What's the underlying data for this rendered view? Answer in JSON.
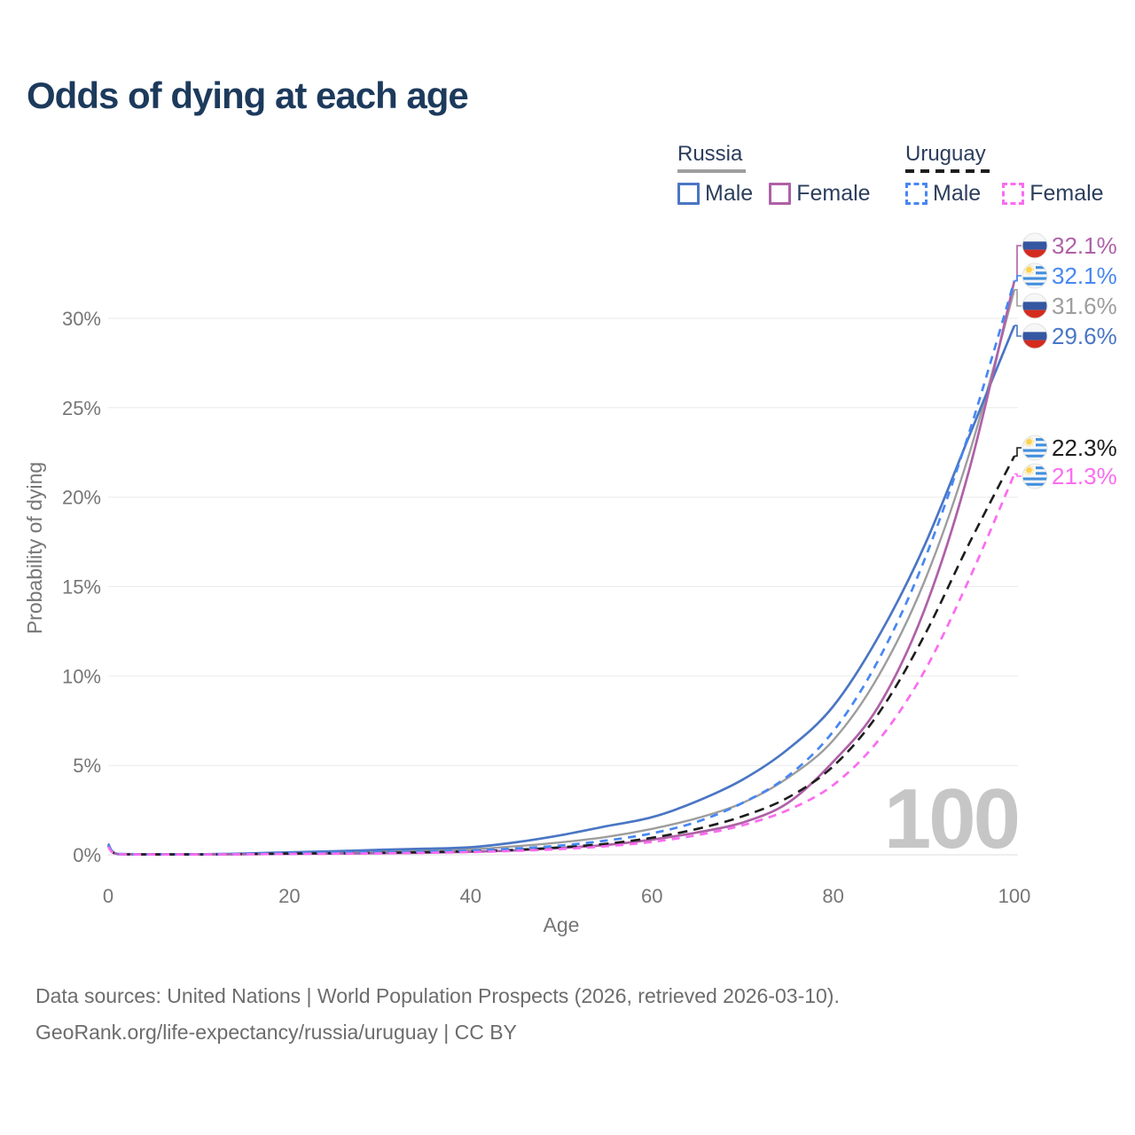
{
  "title": "Odds of dying at each age",
  "watermark": "100",
  "legend": {
    "groups": [
      {
        "country": "Russia",
        "line_style": "solid",
        "underline_color": "#9e9e9e",
        "items": [
          {
            "label": "Male",
            "series": "russia-male"
          },
          {
            "label": "Female",
            "series": "russia-female"
          }
        ]
      },
      {
        "country": "Uruguay",
        "line_style": "dashed",
        "underline_color": "#1d1d1d",
        "items": [
          {
            "label": "Male",
            "series": "uruguay-male"
          },
          {
            "label": "Female",
            "series": "uruguay-female"
          }
        ]
      }
    ]
  },
  "axes": {
    "x": {
      "title": "Age",
      "ticks": [
        "0",
        "20",
        "40",
        "60",
        "80",
        "100"
      ],
      "values": [
        0,
        20,
        40,
        60,
        80,
        100
      ]
    },
    "y": {
      "title": "Probability of dying",
      "ticks": [
        "0%",
        "5%",
        "10%",
        "15%",
        "20%",
        "25%",
        "30%"
      ],
      "values": [
        0,
        5,
        10,
        15,
        20,
        25,
        30
      ]
    }
  },
  "footer": {
    "line1": "Data sources: United Nations | World Population Prospects (2026, retrieved 2026-03-10).",
    "line2": "GeoRank.org/life-expectancy/russia/uruguay | CC BY"
  },
  "chart_data": {
    "type": "line",
    "title": "Odds of dying at each age",
    "xlabel": "Age",
    "ylabel": "Probability of dying",
    "xlim": [
      0,
      100
    ],
    "ylim": [
      0,
      34
    ],
    "grid": "horizontal",
    "x": [
      0,
      1,
      5,
      10,
      15,
      20,
      25,
      30,
      35,
      40,
      45,
      50,
      55,
      60,
      65,
      70,
      75,
      80,
      85,
      90,
      95,
      100
    ],
    "unit": "percent",
    "series": [
      {
        "key": "russia-both",
        "name": "Russia (both sexes)",
        "color": "#9d9d9d",
        "dash": "solid",
        "end_value": 31.6,
        "values": [
          0.56,
          0.05,
          0.03,
          0.03,
          0.05,
          0.1,
          0.14,
          0.19,
          0.24,
          0.3,
          0.48,
          0.7,
          1.0,
          1.45,
          2.05,
          2.9,
          4.3,
          6.4,
          10.0,
          15.2,
          22.4,
          31.6
        ]
      },
      {
        "key": "russia-male",
        "name": "Russia Male",
        "color": "#4a76c4",
        "dash": "solid",
        "end_value": 29.6,
        "values": [
          0.62,
          0.05,
          0.03,
          0.03,
          0.07,
          0.14,
          0.2,
          0.28,
          0.34,
          0.42,
          0.7,
          1.1,
          1.6,
          2.1,
          3.0,
          4.2,
          5.9,
          8.3,
          12.2,
          17.2,
          23.4,
          29.6
        ]
      },
      {
        "key": "russia-female",
        "name": "Russia Female",
        "color": "#af61a7",
        "dash": "solid",
        "end_value": 32.1,
        "values": [
          0.5,
          0.04,
          0.02,
          0.02,
          0.03,
          0.05,
          0.07,
          0.09,
          0.12,
          0.17,
          0.25,
          0.38,
          0.55,
          0.85,
          1.25,
          1.8,
          2.9,
          5.2,
          8.3,
          13.6,
          21.5,
          32.1
        ]
      },
      {
        "key": "uruguay-both",
        "name": "Uruguay (both sexes)",
        "color": "#1d1d1d",
        "dash": "dashed",
        "end_value": 22.3,
        "values": [
          0.5,
          0.04,
          0.02,
          0.02,
          0.04,
          0.07,
          0.09,
          0.11,
          0.15,
          0.2,
          0.28,
          0.42,
          0.62,
          0.95,
          1.45,
          2.15,
          3.2,
          4.95,
          7.9,
          12.2,
          17.4,
          22.3
        ]
      },
      {
        "key": "uruguay-male",
        "name": "Uruguay Male",
        "color": "#4787f2",
        "dash": "dashed",
        "end_value": 32.1,
        "values": [
          0.55,
          0.04,
          0.02,
          0.02,
          0.05,
          0.09,
          0.12,
          0.14,
          0.18,
          0.24,
          0.35,
          0.52,
          0.8,
          1.2,
          1.85,
          2.9,
          4.4,
          6.9,
          10.9,
          16.4,
          23.6,
          32.1
        ]
      },
      {
        "key": "uruguay-female",
        "name": "Uruguay Female",
        "color": "#fb6cf0",
        "dash": "dashed",
        "end_value": 21.3,
        "values": [
          0.45,
          0.03,
          0.02,
          0.02,
          0.03,
          0.05,
          0.06,
          0.08,
          0.11,
          0.15,
          0.22,
          0.32,
          0.48,
          0.72,
          1.1,
          1.65,
          2.5,
          3.9,
          6.4,
          10.2,
          15.4,
          21.3
        ]
      }
    ],
    "end_labels": [
      {
        "series": "russia-female",
        "label": "32.1%",
        "flag": "russia-flag-icon"
      },
      {
        "series": "uruguay-male",
        "label": "32.1%",
        "flag": "uruguay-flag-icon"
      },
      {
        "series": "russia-both",
        "label": "31.6%",
        "flag": "russia-flag-icon"
      },
      {
        "series": "russia-male",
        "label": "29.6%",
        "flag": "russia-flag-icon"
      },
      {
        "series": "uruguay-both",
        "label": "22.3%",
        "flag": "uruguay-flag-icon"
      },
      {
        "series": "uruguay-female",
        "label": "21.3%",
        "flag": "uruguay-flag-icon"
      }
    ]
  }
}
